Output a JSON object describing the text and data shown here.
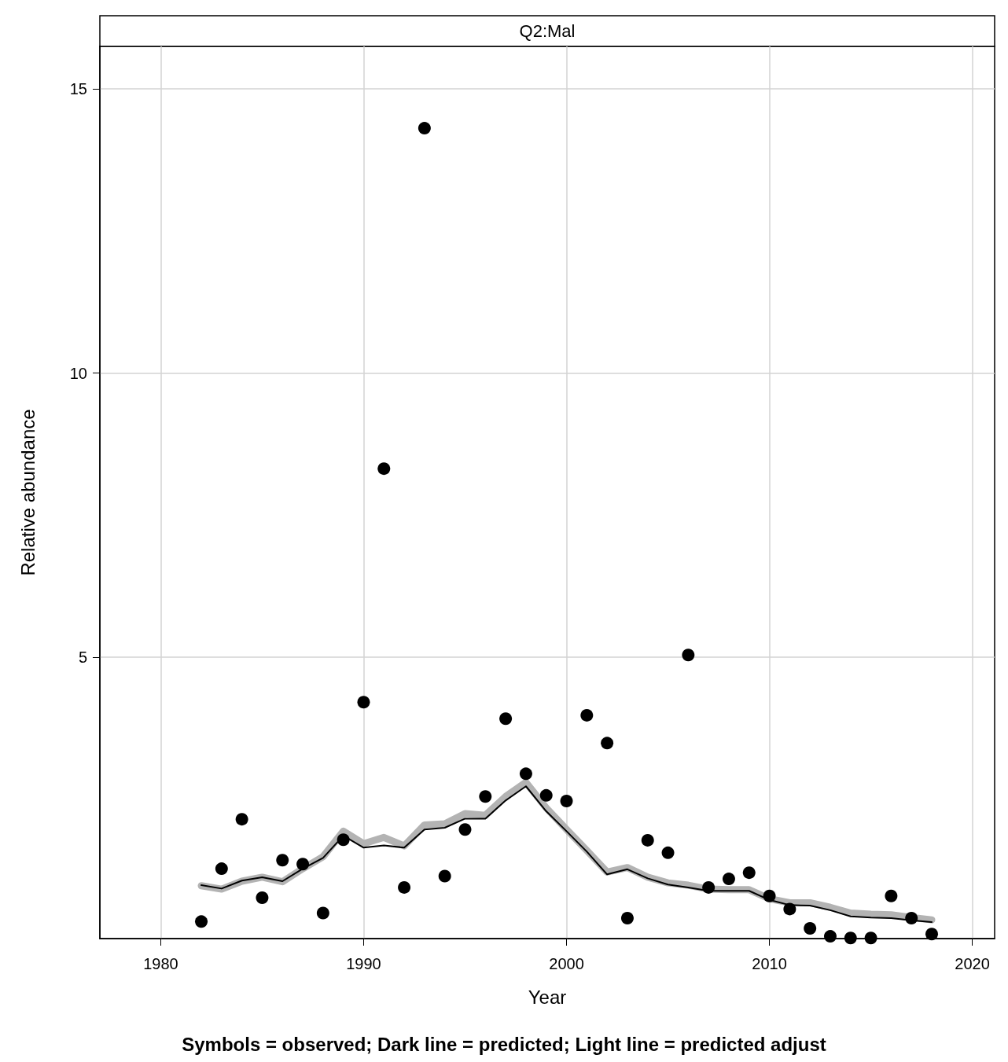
{
  "chart_data": {
    "type": "scatter",
    "title": "Q2:Mal",
    "xlabel": "Year",
    "ylabel": "Relative abundance",
    "annotations": [
      "Symbols = observed; Dark line = predicted; Light line = predicted adjust"
    ],
    "x": [
      1982,
      1983,
      1984,
      1985,
      1986,
      1987,
      1988,
      1989,
      1990,
      1991,
      1992,
      1993,
      1994,
      1995,
      1996,
      1997,
      1998,
      1999,
      2000,
      2001,
      2002,
      2003,
      2004,
      2005,
      2006,
      2007,
      2008,
      2009,
      2010,
      2011,
      2012,
      2013,
      2014,
      2015,
      2016,
      2017,
      2018
    ],
    "series": [
      {
        "type": "line",
        "color": "#b3b3b3",
        "marker": "none",
        "values": [
          0.98,
          0.92,
          1.06,
          1.13,
          1.05,
          1.28,
          1.49,
          1.94,
          1.72,
          1.83,
          1.68,
          2.05,
          2.07,
          2.25,
          2.22,
          2.55,
          2.8,
          2.35,
          1.97,
          1.6,
          1.22,
          1.3,
          1.13,
          1.03,
          0.99,
          0.92,
          0.91,
          0.91,
          0.75,
          0.68,
          0.68,
          0.6,
          0.5,
          0.48,
          0.47,
          0.42,
          0.38
        ]
      },
      {
        "type": "line",
        "color": "#000000",
        "marker": "none",
        "values": [
          0.99,
          0.93,
          1.07,
          1.13,
          1.06,
          1.28,
          1.47,
          1.86,
          1.65,
          1.69,
          1.65,
          1.97,
          2.0,
          2.16,
          2.16,
          2.48,
          2.73,
          2.29,
          1.94,
          1.58,
          1.18,
          1.27,
          1.11,
          1.0,
          0.95,
          0.89,
          0.89,
          0.89,
          0.73,
          0.64,
          0.63,
          0.55,
          0.44,
          0.42,
          0.41,
          0.37,
          0.34
        ]
      },
      {
        "color": "#000000",
        "marker": "circle",
        "values": [
          0.35,
          1.28,
          2.15,
          0.77,
          1.43,
          1.36,
          0.5,
          1.79,
          4.21,
          8.32,
          0.95,
          14.31,
          1.15,
          1.97,
          2.55,
          3.92,
          2.95,
          2.57,
          2.47,
          3.98,
          3.49,
          0.41,
          1.78,
          1.56,
          5.04,
          0.95,
          1.1,
          1.21,
          0.8,
          0.57,
          0.23,
          0.09,
          0.06,
          0.06,
          0.8,
          0.41,
          0.13
        ]
      }
    ],
    "xlim": [
      1977,
      2021.1
    ],
    "xticks": [
      1980,
      1990,
      2000,
      2010,
      2020
    ],
    "ylim": [
      0.05,
      15.75
    ],
    "yticks": [
      5,
      10,
      15
    ],
    "grid": true
  }
}
